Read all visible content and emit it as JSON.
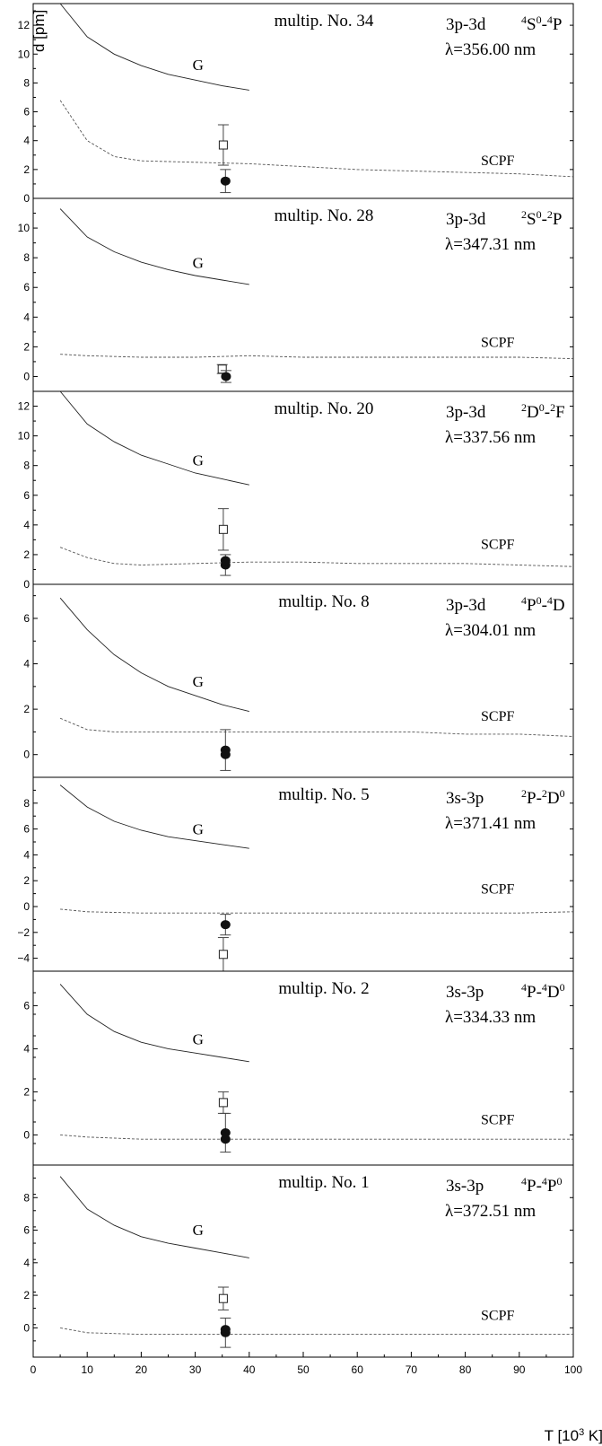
{
  "figure": {
    "ylabel": "d [pm]",
    "xlabel": "T [10",
    "xlabel_sup": "3",
    "xlabel_end": " K]"
  },
  "chart_data": {
    "type": "line",
    "x_axis": {
      "label": "T [10^3 K]",
      "range": [
        0,
        100
      ],
      "ticks": [
        0,
        10,
        20,
        30,
        40,
        50,
        60,
        70,
        80,
        90,
        100
      ]
    },
    "y_label": "d [pm]",
    "panels": [
      {
        "multiplet": "multip. No. 34",
        "transition": "3p-3d",
        "term": [
          [
            "",
            "4"
          ],
          [
            "S",
            "0"
          ],
          [
            "-",
            "4"
          ],
          [
            "P",
            ""
          ]
        ],
        "wavelength": "λ=356.00 nm",
        "ylim": [
          0,
          13.5
        ],
        "yticks": [
          0,
          2,
          4,
          6,
          8,
          10,
          12
        ],
        "series": [
          {
            "name": "G",
            "style": "solid",
            "x": [
              5,
              10,
              15,
              20,
              25,
              30,
              35,
              40
            ],
            "y": [
              13.5,
              11.2,
              10.0,
              9.2,
              8.6,
              8.2,
              7.8,
              7.5
            ]
          },
          {
            "name": "SCPF",
            "style": "dashed",
            "x": [
              5,
              10,
              15,
              20,
              30,
              40,
              50,
              60,
              70,
              80,
              90,
              100
            ],
            "y": [
              6.8,
              4.0,
              2.9,
              2.6,
              2.5,
              2.4,
              2.2,
              2.0,
              1.9,
              1.8,
              1.7,
              1.5
            ]
          }
        ],
        "points": [
          {
            "marker": "open-square",
            "x": 35.2,
            "y": 3.7,
            "err": 1.4
          },
          {
            "marker": "filled-circle",
            "x": 35.6,
            "y": 1.2,
            "err": 0.8
          }
        ],
        "label_G": {
          "x": 29.5,
          "y": 8.9
        },
        "label_SCPF": {
          "x": 86,
          "y": 2.3
        }
      },
      {
        "multiplet": "multip. No. 28",
        "transition": "3p-3d",
        "term": [
          [
            "",
            "2"
          ],
          [
            "S",
            "0"
          ],
          [
            "-",
            "2"
          ],
          [
            "P",
            ""
          ]
        ],
        "wavelength": "λ=347.31 nm",
        "ylim": [
          -1,
          12
        ],
        "yticks": [
          0,
          2,
          4,
          6,
          8,
          10
        ],
        "series": [
          {
            "name": "G",
            "style": "solid",
            "x": [
              5,
              10,
              15,
              20,
              25,
              30,
              35,
              40
            ],
            "y": [
              11.3,
              9.4,
              8.4,
              7.7,
              7.2,
              6.8,
              6.5,
              6.2
            ]
          },
          {
            "name": "SCPF",
            "style": "dashed",
            "x": [
              5,
              10,
              20,
              30,
              40,
              50,
              60,
              70,
              80,
              90,
              100
            ],
            "y": [
              1.5,
              1.4,
              1.3,
              1.3,
              1.4,
              1.3,
              1.3,
              1.3,
              1.3,
              1.3,
              1.2
            ]
          }
        ],
        "points": [
          {
            "marker": "open-square",
            "x": 35.0,
            "y": 0.5,
            "err": 0.3
          },
          {
            "marker": "filled-circle",
            "x": 35.7,
            "y": 0.0,
            "err": 0.4
          }
        ],
        "label_G": {
          "x": 29.5,
          "y": 7.3
        },
        "label_SCPF": {
          "x": 86,
          "y": 2.0
        }
      },
      {
        "multiplet": "multip. No. 20",
        "transition": "3p-3d",
        "term": [
          [
            "",
            "2"
          ],
          [
            "D",
            "0"
          ],
          [
            "-",
            "2"
          ],
          [
            "F",
            ""
          ]
        ],
        "wavelength": "λ=337.56 nm",
        "ylim": [
          0,
          13
        ],
        "yticks": [
          0,
          2,
          4,
          6,
          8,
          10,
          12
        ],
        "series": [
          {
            "name": "G",
            "style": "solid",
            "x": [
              5,
              10,
              15,
              20,
              25,
              30,
              35,
              40
            ],
            "y": [
              13.0,
              10.8,
              9.6,
              8.7,
              8.1,
              7.5,
              7.1,
              6.7
            ]
          },
          {
            "name": "SCPF",
            "style": "dashed",
            "x": [
              5,
              10,
              15,
              20,
              30,
              40,
              50,
              60,
              70,
              80,
              90,
              100
            ],
            "y": [
              2.5,
              1.8,
              1.4,
              1.3,
              1.4,
              1.5,
              1.5,
              1.4,
              1.4,
              1.4,
              1.3,
              1.2
            ]
          }
        ],
        "points": [
          {
            "marker": "open-square",
            "x": 35.2,
            "y": 3.7,
            "err": 1.4
          },
          {
            "marker": "filled-circle",
            "x": 35.6,
            "y": 1.3,
            "err": 0.7
          },
          {
            "marker": "filled-circle",
            "x": 35.6,
            "y": 1.6,
            "err": 0
          }
        ],
        "label_G": {
          "x": 29.5,
          "y": 8.0
        },
        "label_SCPF": {
          "x": 86,
          "y": 2.4
        }
      },
      {
        "multiplet": "multip. No. 8",
        "transition": "3p-3d",
        "term": [
          [
            "",
            "4"
          ],
          [
            "P",
            "0"
          ],
          [
            "-",
            "4"
          ],
          [
            "D",
            ""
          ]
        ],
        "wavelength": "λ=304.01 nm",
        "ylim": [
          -1,
          7.5
        ],
        "yticks": [
          0,
          2,
          4,
          6
        ],
        "series": [
          {
            "name": "G",
            "style": "solid",
            "x": [
              5,
              10,
              15,
              20,
              25,
              30,
              35,
              40
            ],
            "y": [
              6.9,
              5.5,
              4.4,
              3.6,
              3.0,
              2.6,
              2.2,
              1.9
            ]
          },
          {
            "name": "SCPF",
            "style": "dashed",
            "x": [
              5,
              10,
              15,
              20,
              30,
              40,
              50,
              60,
              70,
              80,
              90,
              100
            ],
            "y": [
              1.6,
              1.1,
              1.0,
              1.0,
              1.0,
              1.0,
              1.0,
              1.0,
              1.0,
              0.9,
              0.9,
              0.8
            ]
          }
        ],
        "points": [
          {
            "marker": "filled-circle",
            "x": 35.6,
            "y": 0.2,
            "err": 0.9
          },
          {
            "marker": "filled-circle",
            "x": 35.6,
            "y": 0.0,
            "err": 0
          }
        ],
        "label_G": {
          "x": 29.5,
          "y": 3.0
        },
        "label_SCPF": {
          "x": 86,
          "y": 1.5
        }
      },
      {
        "multiplet": "multip. No. 5",
        "transition": "3s-3p",
        "term": [
          [
            "",
            "2"
          ],
          [
            "P",
            ""
          ],
          [
            "-",
            "2"
          ],
          [
            "D",
            "0"
          ]
        ],
        "wavelength": "λ=371.41 nm",
        "ylim": [
          -5,
          10
        ],
        "yticks": [
          -4,
          -2,
          0,
          2,
          4,
          6,
          8
        ],
        "series": [
          {
            "name": "G",
            "style": "solid",
            "x": [
              5,
              10,
              15,
              20,
              25,
              30,
              35,
              40
            ],
            "y": [
              9.4,
              7.7,
              6.6,
              5.9,
              5.4,
              5.1,
              4.8,
              4.5
            ]
          },
          {
            "name": "SCPF",
            "style": "dashed",
            "x": [
              5,
              10,
              20,
              30,
              40,
              50,
              60,
              70,
              80,
              90,
              100
            ],
            "y": [
              -0.2,
              -0.4,
              -0.5,
              -0.5,
              -0.5,
              -0.5,
              -0.5,
              -0.5,
              -0.5,
              -0.5,
              -0.4
            ]
          }
        ],
        "points": [
          {
            "marker": "open-square",
            "x": 35.2,
            "y": -3.7,
            "err": 1.3
          },
          {
            "marker": "filled-circle",
            "x": 35.6,
            "y": -1.4,
            "err": 0.8
          }
        ],
        "label_G": {
          "x": 29.5,
          "y": 5.6
        },
        "label_SCPF": {
          "x": 86,
          "y": 1.0
        }
      },
      {
        "multiplet": "multip. No. 2",
        "transition": "3s-3p",
        "term": [
          [
            "",
            "4"
          ],
          [
            "P",
            ""
          ],
          [
            "-",
            "4"
          ],
          [
            "D",
            "0"
          ]
        ],
        "wavelength": "λ=334.33 nm",
        "ylim": [
          -1.4,
          7.6
        ],
        "yticks": [
          0,
          2,
          4,
          6
        ],
        "series": [
          {
            "name": "G",
            "style": "solid",
            "x": [
              5,
              10,
              15,
              20,
              25,
              30,
              35,
              40
            ],
            "y": [
              7.0,
              5.6,
              4.8,
              4.3,
              4.0,
              3.8,
              3.6,
              3.4
            ]
          },
          {
            "name": "SCPF",
            "style": "dashed",
            "x": [
              5,
              10,
              20,
              30,
              40,
              50,
              60,
              70,
              80,
              90,
              100
            ],
            "y": [
              0.0,
              -0.1,
              -0.2,
              -0.2,
              -0.2,
              -0.2,
              -0.2,
              -0.2,
              -0.2,
              -0.2,
              -0.2
            ]
          }
        ],
        "points": [
          {
            "marker": "open-square",
            "x": 35.2,
            "y": 1.5,
            "err": 0.5
          },
          {
            "marker": "filled-circle",
            "x": 35.6,
            "y": 0.1,
            "err": 0.9
          },
          {
            "marker": "filled-circle",
            "x": 35.6,
            "y": -0.2,
            "err": 0
          }
        ],
        "label_G": {
          "x": 29.5,
          "y": 4.2
        },
        "label_SCPF": {
          "x": 86,
          "y": 0.5
        }
      },
      {
        "multiplet": "multip. No. 1",
        "transition": "3s-3p",
        "term": [
          [
            "",
            "4"
          ],
          [
            "P",
            ""
          ],
          [
            "-",
            "4"
          ],
          [
            "P",
            "0"
          ]
        ],
        "wavelength": "λ=372.51 nm",
        "ylim": [
          -1.8,
          10
        ],
        "yticks": [
          0,
          2,
          4,
          6,
          8
        ],
        "series": [
          {
            "name": "G",
            "style": "solid",
            "x": [
              5,
              10,
              15,
              20,
              25,
              30,
              35,
              40
            ],
            "y": [
              9.3,
              7.3,
              6.3,
              5.6,
              5.2,
              4.9,
              4.6,
              4.3
            ]
          },
          {
            "name": "SCPF",
            "style": "dashed",
            "x": [
              5,
              10,
              20,
              30,
              40,
              50,
              60,
              70,
              80,
              90,
              100
            ],
            "y": [
              0.0,
              -0.3,
              -0.4,
              -0.4,
              -0.4,
              -0.4,
              -0.4,
              -0.4,
              -0.4,
              -0.4,
              -0.4
            ]
          }
        ],
        "points": [
          {
            "marker": "open-square",
            "x": 35.2,
            "y": 1.8,
            "err": 0.7
          },
          {
            "marker": "filled-circle",
            "x": 35.6,
            "y": -0.3,
            "err": 0.9
          },
          {
            "marker": "filled-circle",
            "x": 35.6,
            "y": -0.1,
            "err": 0
          }
        ],
        "label_G": {
          "x": 29.5,
          "y": 5.7
        },
        "label_SCPF": {
          "x": 86,
          "y": 0.5
        }
      }
    ]
  }
}
